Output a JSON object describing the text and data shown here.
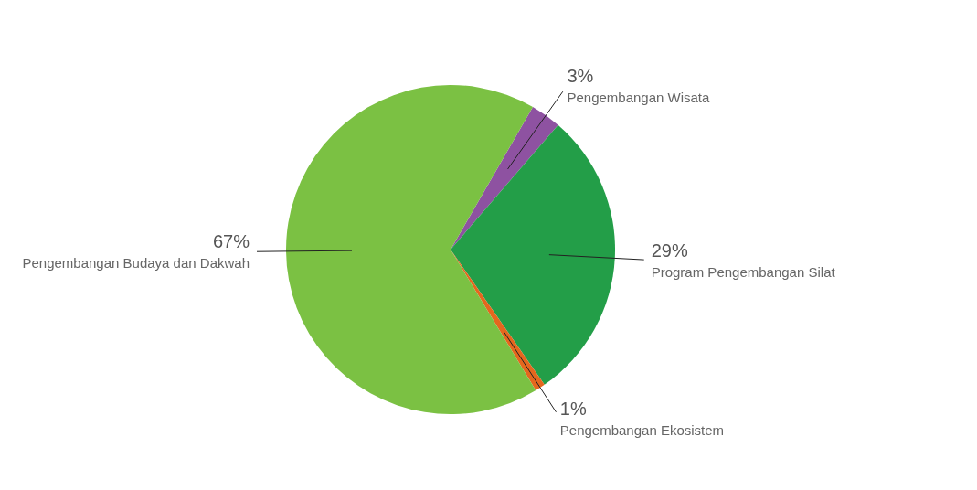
{
  "chart_data": {
    "type": "pie",
    "categories": [
      "Pengembangan Wisata",
      "Program Pengembangan Silat",
      "Pengembangan Ekosistem",
      "Pengembangan Budaya dan Dakwah"
    ],
    "values": [
      3,
      29,
      1,
      67
    ],
    "value_labels": [
      "3%",
      "29%",
      "1%",
      "67%"
    ],
    "colors": [
      "#8e52a1",
      "#239e48",
      "#e5671e",
      "#7bc143"
    ]
  }
}
